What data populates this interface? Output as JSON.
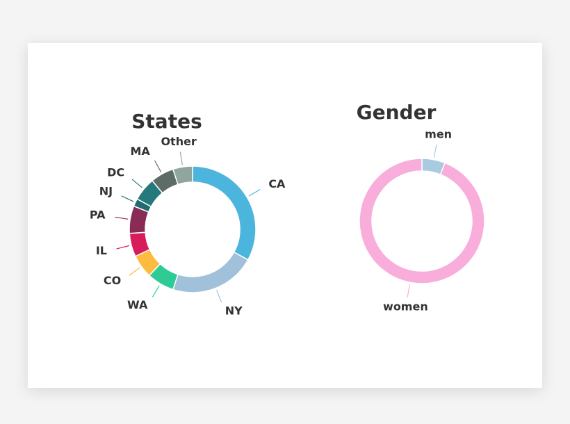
{
  "chart_data": [
    {
      "type": "donut",
      "title": "States",
      "categories": [
        "CA",
        "NY",
        "WA",
        "CO",
        "IL",
        "PA",
        "NJ",
        "DC",
        "MA",
        "Other"
      ],
      "values": [
        33,
        22,
        7,
        6,
        6,
        7,
        2,
        6,
        6,
        5
      ],
      "colors": [
        "#4bb5de",
        "#a0c1d9",
        "#2ecc94",
        "#fdbb40",
        "#d81c5b",
        "#8a2b56",
        "#1f6b70",
        "#26797a",
        "#5d6c67",
        "#8fa59e"
      ]
    },
    {
      "type": "donut",
      "title": "Gender",
      "categories": [
        "men",
        "women"
      ],
      "values": [
        6,
        94
      ],
      "colors": [
        "#a9cbe0",
        "#f9addb"
      ]
    }
  ]
}
